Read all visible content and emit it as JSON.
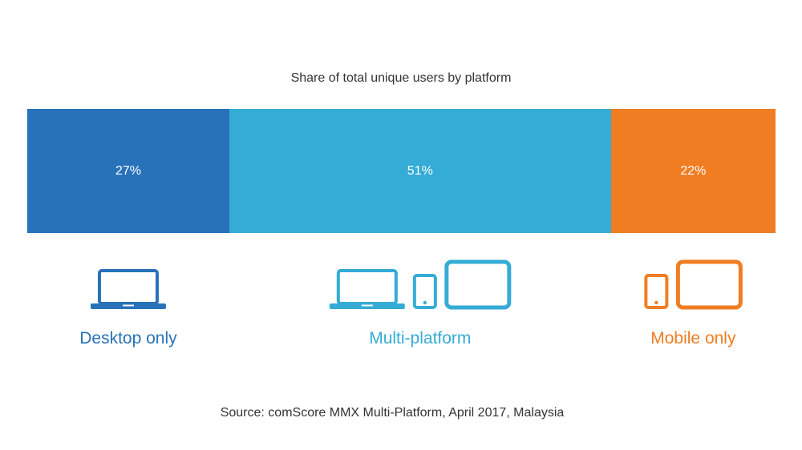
{
  "chart_data": {
    "type": "bar",
    "orientation": "horizontal-stacked-100",
    "title": "Share of total unique users by platform",
    "categories": [
      "Desktop only",
      "Multi-platform",
      "Mobile only"
    ],
    "values": [
      27,
      51,
      22
    ],
    "value_labels": [
      "27%",
      "51%",
      "22%"
    ],
    "unit": "%",
    "colors": [
      "#2872b9",
      "#35acd6",
      "#f07d22"
    ],
    "icons": [
      [
        "laptop-icon"
      ],
      [
        "laptop-icon",
        "phone-icon",
        "tablet-icon"
      ],
      [
        "phone-icon",
        "tablet-icon"
      ]
    ],
    "grid": false,
    "legend": "below"
  },
  "source": "Source: comScore MMX Multi-Platform, April 2017, Malaysia"
}
